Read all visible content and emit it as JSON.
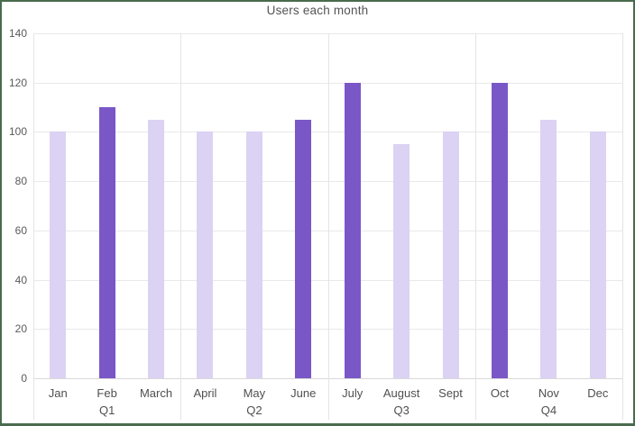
{
  "frame": {
    "border_color": "#4a6b4e",
    "background": "#ffffff"
  },
  "chart_data": {
    "type": "bar",
    "title": "Users each month",
    "xlabel": "",
    "ylabel": "",
    "ylim": [
      0,
      140
    ],
    "ytick_step": 20,
    "ytick_labels": [
      "0",
      "20",
      "40",
      "60",
      "80",
      "100",
      "120",
      "140"
    ],
    "grid": true,
    "legend": false,
    "categories": [
      "Jan",
      "Feb",
      "March",
      "April",
      "May",
      "June",
      "July",
      "August",
      "Sept",
      "Oct",
      "Nov",
      "Dec"
    ],
    "values": [
      100,
      110,
      105,
      100,
      100,
      105,
      120,
      95,
      100,
      120,
      105,
      100
    ],
    "highlighted_categories": [
      "Feb",
      "June",
      "July",
      "Oct"
    ],
    "groups": [
      {
        "label": "Q1",
        "months": [
          {
            "label": "Jan",
            "value": 100,
            "highlight": false
          },
          {
            "label": "Feb",
            "value": 110,
            "highlight": true
          },
          {
            "label": "March",
            "value": 105,
            "highlight": false
          }
        ]
      },
      {
        "label": "Q2",
        "months": [
          {
            "label": "April",
            "value": 100,
            "highlight": false
          },
          {
            "label": "May",
            "value": 100,
            "highlight": false
          },
          {
            "label": "June",
            "value": 105,
            "highlight": true
          }
        ]
      },
      {
        "label": "Q3",
        "months": [
          {
            "label": "July",
            "value": 120,
            "highlight": true
          },
          {
            "label": "August",
            "value": 95,
            "highlight": false
          },
          {
            "label": "Sept",
            "value": 100,
            "highlight": false
          }
        ]
      },
      {
        "label": "Q4",
        "months": [
          {
            "label": "Oct",
            "value": 120,
            "highlight": true
          },
          {
            "label": "Nov",
            "value": 105,
            "highlight": false
          },
          {
            "label": "Dec",
            "value": 100,
            "highlight": false
          }
        ]
      }
    ],
    "colors": {
      "bar": "#dcd2f3",
      "bar_highlight": "#7a57c7",
      "gridline": "#e9e9e9",
      "axis_line": "#d9d9d9",
      "divider": "#e4e4e4",
      "title_text": "#545454",
      "tick_text": "#5a5a5a",
      "label_text": "#4f4f4f"
    }
  }
}
